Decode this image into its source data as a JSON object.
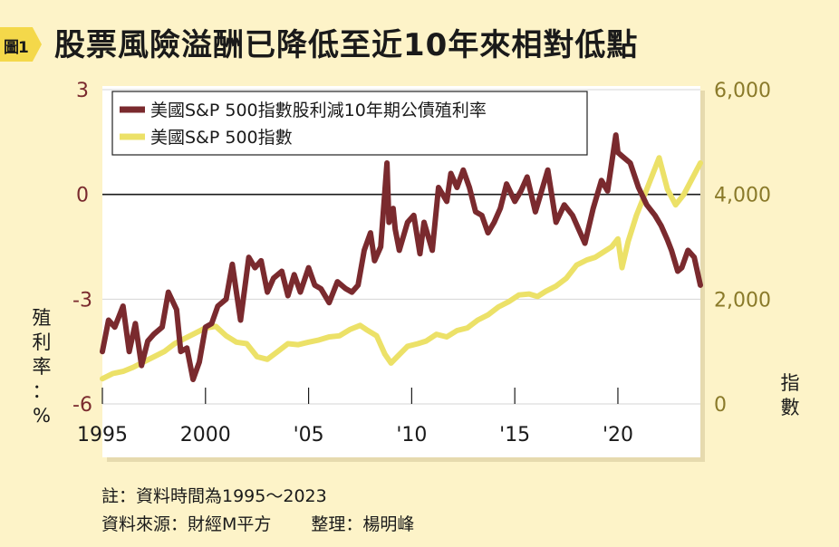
{
  "figure": {
    "label": "圖1",
    "title": "股票風險溢酬已降低至近10年來相對低點"
  },
  "notes": {
    "line1": "註：資料時間為1995～2023",
    "source": "資料來源：財經M平方",
    "editor": "整理：楊明峰"
  },
  "chart_data": {
    "type": "line",
    "title": "股票風險溢酬已降低至近10年來相對低點",
    "x_ticks": [
      "1995",
      "2000",
      "'05",
      "'10",
      "'15",
      "'20"
    ],
    "x_tick_years": [
      1995,
      2000,
      2005,
      2010,
      2015,
      2020
    ],
    "xlim": [
      1995,
      2024
    ],
    "left_axis": {
      "label": "殖利率：%",
      "ticks": [
        "3",
        "0",
        "-3",
        "-6"
      ],
      "values": [
        3,
        0,
        -3,
        -6
      ],
      "ylim": [
        -6,
        3
      ],
      "color": "#7a2a2e"
    },
    "right_axis": {
      "label": "指數",
      "ticks": [
        "6,000",
        "4,000",
        "2,000",
        "0"
      ],
      "values": [
        6000,
        4000,
        2000,
        0
      ],
      "ylim": [
        0,
        6000
      ],
      "color": "#8a7a2a"
    },
    "zero_line": 0,
    "grid": "horizontal",
    "legend_position": "top-left",
    "series": [
      {
        "name": "美國S&P 500指數股利減10年期公債殖利率",
        "axis": "left",
        "color": "#7a2a2e",
        "x": [
          1995.0,
          1995.3,
          1995.6,
          1996.0,
          1996.3,
          1996.6,
          1996.9,
          1997.2,
          1997.5,
          1997.9,
          1998.2,
          1998.6,
          1998.8,
          1999.1,
          1999.4,
          1999.7,
          2000.0,
          2000.3,
          2000.6,
          2001.0,
          2001.3,
          2001.7,
          2002.1,
          2002.4,
          2002.7,
          2003.0,
          2003.3,
          2003.7,
          2004.0,
          2004.3,
          2004.6,
          2005.0,
          2005.3,
          2005.6,
          2006.0,
          2006.4,
          2006.8,
          2007.1,
          2007.4,
          2007.7,
          2008.0,
          2008.2,
          2008.5,
          2008.8,
          2008.9,
          2009.1,
          2009.2,
          2009.4,
          2009.8,
          2010.1,
          2010.4,
          2010.6,
          2011.0,
          2011.3,
          2011.7,
          2011.9,
          2012.2,
          2012.5,
          2012.8,
          2013.1,
          2013.4,
          2013.7,
          2014.0,
          2014.3,
          2014.6,
          2015.0,
          2015.3,
          2015.6,
          2016.0,
          2016.3,
          2016.6,
          2017.0,
          2017.4,
          2017.8,
          2018.1,
          2018.4,
          2018.8,
          2019.2,
          2019.5,
          2019.9,
          2020.0,
          2020.2,
          2020.6,
          2021.0,
          2021.4,
          2021.8,
          2022.1,
          2022.4,
          2022.6,
          2022.9,
          2023.1,
          2023.4,
          2023.7,
          2024.0
        ],
        "values": [
          -4.5,
          -3.6,
          -3.8,
          -3.2,
          -4.5,
          -3.7,
          -4.9,
          -4.2,
          -4.0,
          -3.8,
          -2.8,
          -3.3,
          -4.5,
          -4.4,
          -5.3,
          -4.8,
          -3.8,
          -3.7,
          -3.2,
          -3.0,
          -2.0,
          -3.6,
          -1.8,
          -2.1,
          -1.9,
          -2.8,
          -2.4,
          -2.2,
          -2.9,
          -2.3,
          -2.8,
          -2.1,
          -2.6,
          -2.7,
          -3.1,
          -2.5,
          -2.7,
          -2.8,
          -2.6,
          -1.6,
          -1.1,
          -1.9,
          -1.5,
          0.9,
          -0.8,
          -0.4,
          -1.0,
          -1.6,
          -0.8,
          -0.6,
          -1.7,
          -0.8,
          -1.6,
          0.2,
          -0.2,
          0.6,
          0.2,
          0.7,
          0.2,
          -0.5,
          -0.6,
          -1.1,
          -0.8,
          -0.4,
          0.3,
          -0.2,
          0.1,
          0.5,
          -0.5,
          0.1,
          0.7,
          -0.8,
          -0.3,
          -0.6,
          -1.0,
          -1.4,
          -0.4,
          0.4,
          0.1,
          1.7,
          1.2,
          1.1,
          0.9,
          0.2,
          -0.3,
          -0.6,
          -0.9,
          -1.3,
          -1.6,
          -2.2,
          -2.1,
          -1.6,
          -1.8,
          -2.6
        ]
      },
      {
        "name": "美國S&P 500指數",
        "axis": "right",
        "color": "#ece168",
        "x": [
          1995.0,
          1995.5,
          1996.0,
          1996.5,
          1997.0,
          1997.5,
          1998.0,
          1998.5,
          1999.0,
          1999.5,
          2000.0,
          2000.5,
          2001.0,
          2001.5,
          2002.0,
          2002.5,
          2003.0,
          2003.5,
          2004.0,
          2004.5,
          2005.0,
          2005.5,
          2006.0,
          2006.5,
          2007.0,
          2007.5,
          2007.8,
          2008.3,
          2008.7,
          2009.0,
          2009.3,
          2009.8,
          2010.3,
          2010.7,
          2011.2,
          2011.7,
          2012.2,
          2012.7,
          2013.2,
          2013.7,
          2014.2,
          2014.7,
          2015.2,
          2015.7,
          2016.1,
          2016.5,
          2017.0,
          2017.5,
          2018.0,
          2018.5,
          2018.9,
          2019.3,
          2019.7,
          2020.0,
          2020.2,
          2020.5,
          2020.9,
          2021.3,
          2021.7,
          2022.0,
          2022.4,
          2022.8,
          2023.2,
          2023.6,
          2024.0
        ],
        "values": [
          480,
          580,
          620,
          700,
          800,
          900,
          1000,
          1150,
          1250,
          1350,
          1450,
          1480,
          1300,
          1180,
          1150,
          900,
          850,
          1000,
          1150,
          1130,
          1180,
          1220,
          1280,
          1300,
          1420,
          1500,
          1420,
          1300,
          950,
          780,
          900,
          1100,
          1150,
          1200,
          1330,
          1280,
          1400,
          1450,
          1600,
          1700,
          1850,
          1950,
          2080,
          2100,
          2050,
          2150,
          2250,
          2400,
          2650,
          2750,
          2800,
          2900,
          3000,
          3150,
          2600,
          3100,
          3600,
          4000,
          4400,
          4700,
          4100,
          3800,
          4000,
          4300,
          4600
        ]
      }
    ]
  }
}
